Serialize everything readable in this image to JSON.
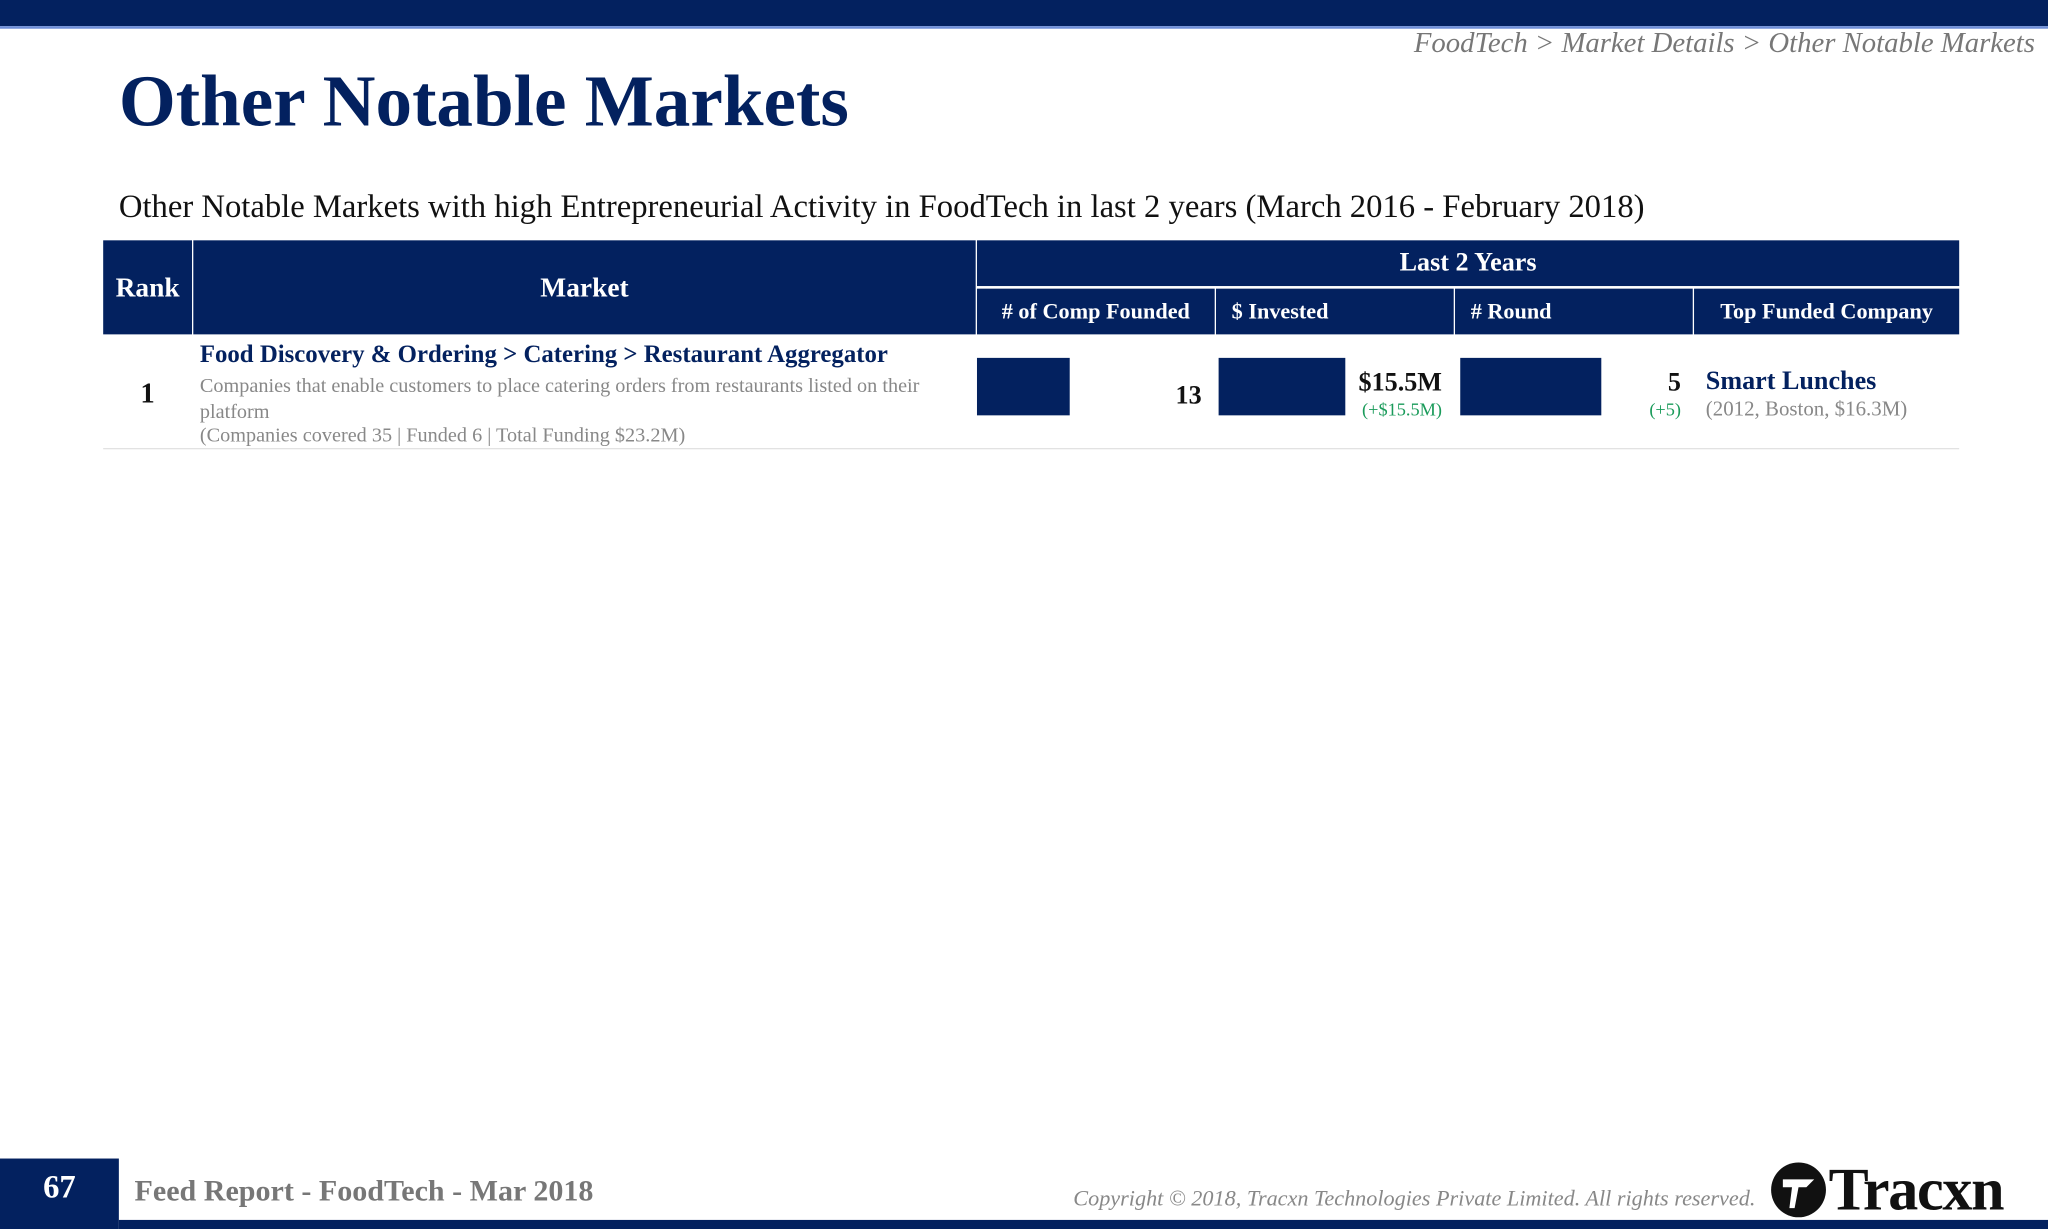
{
  "header": {
    "breadcrumb": "FoodTech > Market Details > Other Notable Markets",
    "title": "Other Notable Markets"
  },
  "subtitle": "Other Notable Markets with high Entrepreneurial Activity in FoodTech in last 2 years (March 2016 - February 2018)",
  "table": {
    "columns": {
      "rank": "Rank",
      "market": "Market",
      "group": "Last 2 Years",
      "comp_founded": "# of Comp Founded",
      "invested": "$ Invested",
      "rounds": "# Round",
      "top_company": "Top Funded Company"
    },
    "rows": [
      {
        "rank": 1,
        "market": "Food Discovery & Ordering > Catering > Restaurant Aggregator",
        "description": "Companies that enable customers to place catering orders from restaurants listed on their platform",
        "coverage": "(Companies covered 35 | Funded 6 | Total Funding $23.2M)",
        "comp_founded": 13,
        "invested": {
          "value": 15500000,
          "label": "$15.5M"
        },
        "invested_change": "(+$15.5M)",
        "rounds": 5,
        "rounds_change": "(+5)",
        "top_company": "Smart Lunches",
        "top_company_details": "(2012, Boston, $16.3M)"
      }
    ]
  },
  "footer": {
    "page": 67,
    "report": "Feed Report - FoodTech - Mar 2018",
    "copyright": "Copyright © 2018, Tracxn Technologies Private Limited. All rights reserved.",
    "logo": "Tracxn"
  }
}
